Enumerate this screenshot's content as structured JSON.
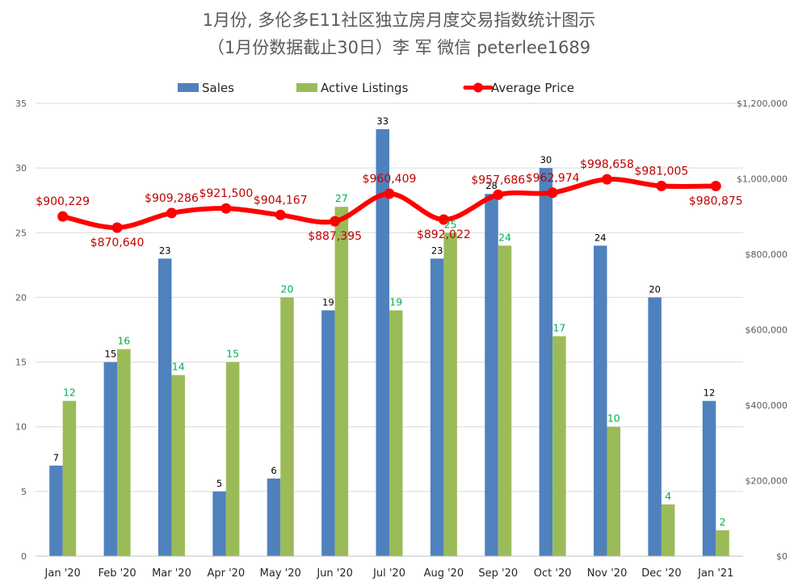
{
  "chart_data": {
    "type": "bar",
    "title": "1月份, 多伦多E11社区独立房月度交易指数统计图示",
    "subtitle": "（1月份数据截止30日）李 军  微信  peterlee1689",
    "categories": [
      "Jan '20",
      "Feb '20",
      "Mar '20",
      "Apr '20",
      "May '20",
      "Jun '20",
      "Jul '20",
      "Aug '20",
      "Sep '20",
      "Oct '20",
      "Nov '20",
      "Dec '20",
      "Jan '21"
    ],
    "series": [
      {
        "name": "Sales",
        "type": "bar",
        "axis": "left",
        "color": "#4F81BD",
        "values": [
          7,
          15,
          23,
          5,
          6,
          19,
          33,
          23,
          28,
          30,
          24,
          20,
          12
        ],
        "labels": [
          "7",
          "15",
          "23",
          "5",
          "6",
          "19",
          "33",
          "23",
          "28",
          "30",
          "24",
          "20",
          "12"
        ],
        "label_color": "#000000"
      },
      {
        "name": "Active Listings",
        "type": "bar",
        "axis": "left",
        "color": "#9BBB59",
        "values": [
          12,
          16,
          14,
          15,
          20,
          27,
          19,
          25,
          24,
          17,
          10,
          4,
          2
        ],
        "labels": [
          "12",
          "16",
          "14",
          "15",
          "20",
          "27",
          "19",
          "25",
          "24",
          "17",
          "10",
          "4",
          "2"
        ],
        "label_color": "#00B050"
      },
      {
        "name": "Average Price",
        "type": "line",
        "axis": "right",
        "color": "#FF0000",
        "values": [
          900229,
          870640,
          909286,
          921500,
          904167,
          887395,
          960409,
          892022,
          957686,
          962974,
          998658,
          981005,
          980875
        ],
        "labels": [
          "$900,229",
          "$870,640",
          "$909,286",
          "$921,500",
          "$904,167",
          "$887,395",
          "$960,409",
          "$892,022",
          "$957,686",
          "$962,974",
          "$998,658",
          "$981,005",
          "$980,875"
        ],
        "label_color": "#C00000"
      }
    ],
    "y_left": {
      "min": 0,
      "max": 35,
      "ticks": [
        0,
        5,
        10,
        15,
        20,
        25,
        30,
        35
      ],
      "tick_labels": [
        "0",
        "5",
        "10",
        "15",
        "20",
        "25",
        "30",
        "35"
      ]
    },
    "y_right": {
      "min": 0,
      "max": 1200000,
      "ticks": [
        0,
        200000,
        400000,
        600000,
        800000,
        1000000,
        1200000
      ],
      "tick_labels": [
        "$0",
        "$200,000",
        "$400,000",
        "$600,000",
        "$800,000",
        "$1,000,000",
        "$1,200,000"
      ]
    },
    "legend_position": "top",
    "grid": true,
    "gridline_color": "#D9D9D9"
  }
}
